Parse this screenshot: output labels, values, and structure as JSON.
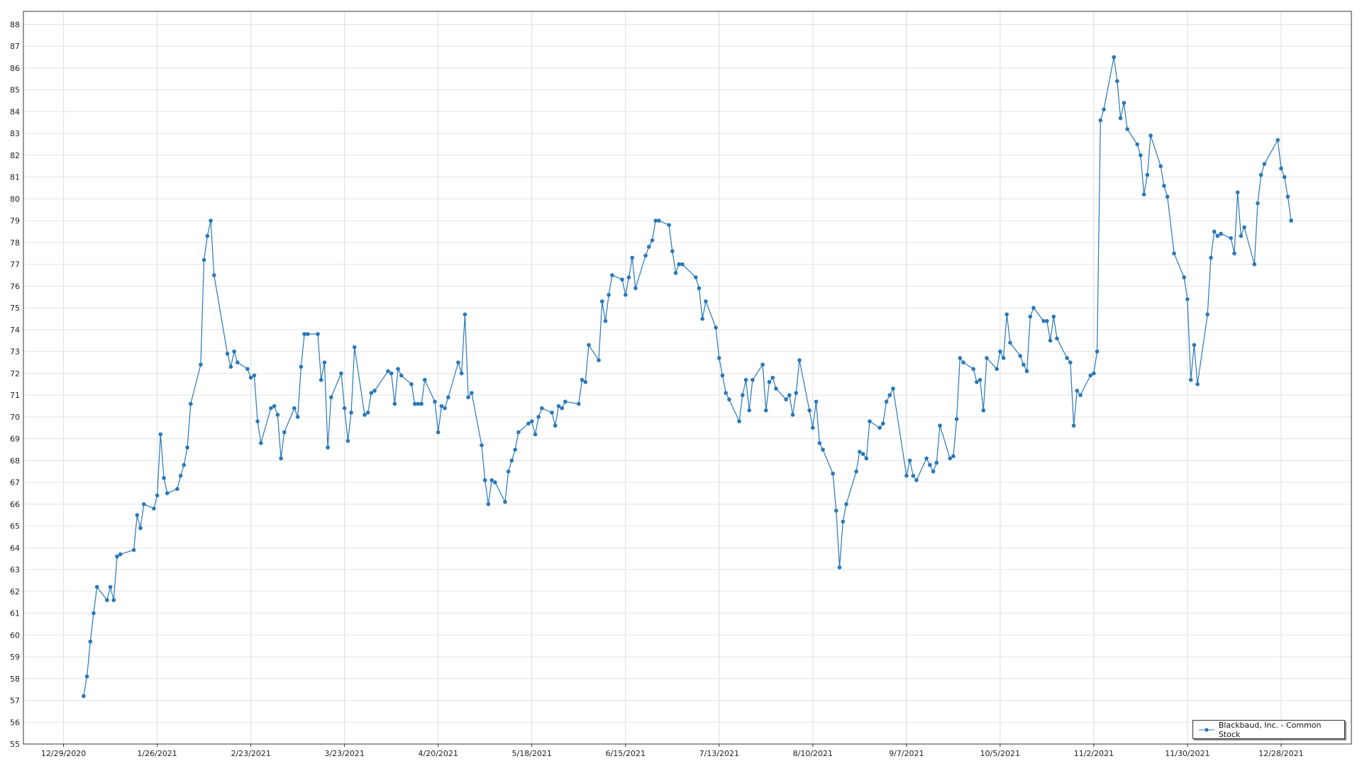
{
  "chart_data": {
    "type": "line",
    "title": "",
    "xlabel": "",
    "ylabel": "",
    "xlim": [
      "2020-12-17",
      "2022-01-18"
    ],
    "ylim": [
      55,
      88.6
    ],
    "grid": true,
    "legend_position": "bottom-right",
    "x_ticks": [
      "12/29/2020",
      "1/26/2021",
      "2/23/2021",
      "3/23/2021",
      "4/20/2021",
      "5/18/2021",
      "6/15/2021",
      "7/13/2021",
      "8/10/2021",
      "9/7/2021",
      "10/5/2021",
      "11/2/2021",
      "11/30/2021",
      "12/28/2021"
    ],
    "y_ticks": [
      55,
      56,
      57,
      58,
      59,
      60,
      61,
      62,
      63,
      64,
      65,
      66,
      67,
      68,
      69,
      70,
      71,
      72,
      73,
      74,
      75,
      76,
      77,
      78,
      79,
      80,
      81,
      82,
      83,
      84,
      85,
      86,
      87,
      88
    ],
    "series": [
      {
        "name": "Blackbaud, Inc. - Common Stock",
        "color": "#2878b8",
        "points": [
          [
            "2021-01-04",
            57.2
          ],
          [
            "2021-01-05",
            58.1
          ],
          [
            "2021-01-06",
            59.7
          ],
          [
            "2021-01-07",
            61.0
          ],
          [
            "2021-01-08",
            62.2
          ],
          [
            "2021-01-11",
            61.6
          ],
          [
            "2021-01-12",
            62.2
          ],
          [
            "2021-01-13",
            61.6
          ],
          [
            "2021-01-14",
            63.6
          ],
          [
            "2021-01-15",
            63.7
          ],
          [
            "2021-01-19",
            63.9
          ],
          [
            "2021-01-20",
            65.5
          ],
          [
            "2021-01-21",
            64.9
          ],
          [
            "2021-01-22",
            66.0
          ],
          [
            "2021-01-25",
            65.8
          ],
          [
            "2021-01-26",
            66.4
          ],
          [
            "2021-01-27",
            69.2
          ],
          [
            "2021-01-28",
            67.2
          ],
          [
            "2021-01-29",
            66.5
          ],
          [
            "2021-02-01",
            66.7
          ],
          [
            "2021-02-02",
            67.3
          ],
          [
            "2021-02-03",
            67.8
          ],
          [
            "2021-02-04",
            68.6
          ],
          [
            "2021-02-05",
            70.6
          ],
          [
            "2021-02-08",
            72.4
          ],
          [
            "2021-02-09",
            77.2
          ],
          [
            "2021-02-10",
            78.3
          ],
          [
            "2021-02-11",
            79.0
          ],
          [
            "2021-02-12",
            76.5
          ],
          [
            "2021-02-16",
            72.9
          ],
          [
            "2021-02-17",
            72.3
          ],
          [
            "2021-02-18",
            73.0
          ],
          [
            "2021-02-19",
            72.5
          ],
          [
            "2021-02-22",
            72.2
          ],
          [
            "2021-02-23",
            71.8
          ],
          [
            "2021-02-24",
            71.9
          ],
          [
            "2021-02-25",
            69.8
          ],
          [
            "2021-02-26",
            68.8
          ],
          [
            "2021-03-01",
            70.4
          ],
          [
            "2021-03-02",
            70.5
          ],
          [
            "2021-03-03",
            70.1
          ],
          [
            "2021-03-04",
            68.1
          ],
          [
            "2021-03-05",
            69.3
          ],
          [
            "2021-03-08",
            70.4
          ],
          [
            "2021-03-09",
            70.0
          ],
          [
            "2021-03-10",
            72.3
          ],
          [
            "2021-03-11",
            73.8
          ],
          [
            "2021-03-12",
            73.8
          ],
          [
            "2021-03-15",
            73.8
          ],
          [
            "2021-03-16",
            71.7
          ],
          [
            "2021-03-17",
            72.5
          ],
          [
            "2021-03-18",
            68.6
          ],
          [
            "2021-03-19",
            70.9
          ],
          [
            "2021-03-22",
            72.0
          ],
          [
            "2021-03-23",
            70.4
          ],
          [
            "2021-03-24",
            68.9
          ],
          [
            "2021-03-25",
            70.2
          ],
          [
            "2021-03-26",
            73.2
          ],
          [
            "2021-03-29",
            70.1
          ],
          [
            "2021-03-30",
            70.2
          ],
          [
            "2021-03-31",
            71.1
          ],
          [
            "2021-04-01",
            71.2
          ],
          [
            "2021-04-05",
            72.1
          ],
          [
            "2021-04-06",
            72.0
          ],
          [
            "2021-04-07",
            70.6
          ],
          [
            "2021-04-08",
            72.2
          ],
          [
            "2021-04-09",
            71.9
          ],
          [
            "2021-04-12",
            71.5
          ],
          [
            "2021-04-13",
            70.6
          ],
          [
            "2021-04-14",
            70.6
          ],
          [
            "2021-04-15",
            70.6
          ],
          [
            "2021-04-16",
            71.7
          ],
          [
            "2021-04-19",
            70.7
          ],
          [
            "2021-04-20",
            69.3
          ],
          [
            "2021-04-21",
            70.5
          ],
          [
            "2021-04-22",
            70.4
          ],
          [
            "2021-04-23",
            70.9
          ],
          [
            "2021-04-26",
            72.5
          ],
          [
            "2021-04-27",
            72.0
          ],
          [
            "2021-04-28",
            74.7
          ],
          [
            "2021-04-29",
            70.9
          ],
          [
            "2021-04-30",
            71.1
          ],
          [
            "2021-05-03",
            68.7
          ],
          [
            "2021-05-04",
            67.1
          ],
          [
            "2021-05-05",
            66.0
          ],
          [
            "2021-05-06",
            67.1
          ],
          [
            "2021-05-07",
            67.0
          ],
          [
            "2021-05-10",
            66.1
          ],
          [
            "2021-05-11",
            67.5
          ],
          [
            "2021-05-12",
            68.0
          ],
          [
            "2021-05-13",
            68.5
          ],
          [
            "2021-05-14",
            69.3
          ],
          [
            "2021-05-17",
            69.7
          ],
          [
            "2021-05-18",
            69.8
          ],
          [
            "2021-05-19",
            69.2
          ],
          [
            "2021-05-20",
            70.0
          ],
          [
            "2021-05-21",
            70.4
          ],
          [
            "2021-05-24",
            70.2
          ],
          [
            "2021-05-25",
            69.6
          ],
          [
            "2021-05-26",
            70.5
          ],
          [
            "2021-05-27",
            70.4
          ],
          [
            "2021-05-28",
            70.7
          ],
          [
            "2021-06-01",
            70.6
          ],
          [
            "2021-06-02",
            71.7
          ],
          [
            "2021-06-03",
            71.6
          ],
          [
            "2021-06-04",
            73.3
          ],
          [
            "2021-06-07",
            72.6
          ],
          [
            "2021-06-08",
            75.3
          ],
          [
            "2021-06-09",
            74.4
          ],
          [
            "2021-06-10",
            75.6
          ],
          [
            "2021-06-11",
            76.5
          ],
          [
            "2021-06-14",
            76.3
          ],
          [
            "2021-06-15",
            75.6
          ],
          [
            "2021-06-16",
            76.4
          ],
          [
            "2021-06-17",
            77.3
          ],
          [
            "2021-06-18",
            75.9
          ],
          [
            "2021-06-21",
            77.4
          ],
          [
            "2021-06-22",
            77.8
          ],
          [
            "2021-06-23",
            78.1
          ],
          [
            "2021-06-24",
            79.0
          ],
          [
            "2021-06-25",
            79.0
          ],
          [
            "2021-06-28",
            78.8
          ],
          [
            "2021-06-29",
            77.6
          ],
          [
            "2021-06-30",
            76.6
          ],
          [
            "2021-07-01",
            77.0
          ],
          [
            "2021-07-02",
            77.0
          ],
          [
            "2021-07-06",
            76.4
          ],
          [
            "2021-07-07",
            75.9
          ],
          [
            "2021-07-08",
            74.5
          ],
          [
            "2021-07-09",
            75.3
          ],
          [
            "2021-07-12",
            74.1
          ],
          [
            "2021-07-13",
            72.7
          ],
          [
            "2021-07-14",
            71.9
          ],
          [
            "2021-07-15",
            71.1
          ],
          [
            "2021-07-16",
            70.8
          ],
          [
            "2021-07-19",
            69.8
          ],
          [
            "2021-07-20",
            71.0
          ],
          [
            "2021-07-21",
            71.7
          ],
          [
            "2021-07-22",
            70.3
          ],
          [
            "2021-07-23",
            71.7
          ],
          [
            "2021-07-26",
            72.4
          ],
          [
            "2021-07-27",
            70.3
          ],
          [
            "2021-07-28",
            71.6
          ],
          [
            "2021-07-29",
            71.8
          ],
          [
            "2021-07-30",
            71.3
          ],
          [
            "2021-08-02",
            70.8
          ],
          [
            "2021-08-03",
            71.0
          ],
          [
            "2021-08-04",
            70.1
          ],
          [
            "2021-08-05",
            71.1
          ],
          [
            "2021-08-06",
            72.6
          ],
          [
            "2021-08-09",
            70.3
          ],
          [
            "2021-08-10",
            69.5
          ],
          [
            "2021-08-11",
            70.7
          ],
          [
            "2021-08-12",
            68.8
          ],
          [
            "2021-08-13",
            68.5
          ],
          [
            "2021-08-16",
            67.4
          ],
          [
            "2021-08-17",
            65.7
          ],
          [
            "2021-08-18",
            63.1
          ],
          [
            "2021-08-19",
            65.2
          ],
          [
            "2021-08-20",
            66.0
          ],
          [
            "2021-08-23",
            67.5
          ],
          [
            "2021-08-24",
            68.4
          ],
          [
            "2021-08-25",
            68.3
          ],
          [
            "2021-08-26",
            68.1
          ],
          [
            "2021-08-27",
            69.8
          ],
          [
            "2021-08-30",
            69.5
          ],
          [
            "2021-08-31",
            69.7
          ],
          [
            "2021-09-01",
            70.7
          ],
          [
            "2021-09-02",
            71.0
          ],
          [
            "2021-09-03",
            71.3
          ],
          [
            "2021-09-07",
            67.3
          ],
          [
            "2021-09-08",
            68.0
          ],
          [
            "2021-09-09",
            67.3
          ],
          [
            "2021-09-10",
            67.1
          ],
          [
            "2021-09-13",
            68.1
          ],
          [
            "2021-09-14",
            67.8
          ],
          [
            "2021-09-15",
            67.5
          ],
          [
            "2021-09-16",
            67.9
          ],
          [
            "2021-09-17",
            69.6
          ],
          [
            "2021-09-20",
            68.1
          ],
          [
            "2021-09-21",
            68.2
          ],
          [
            "2021-09-22",
            69.9
          ],
          [
            "2021-09-23",
            72.7
          ],
          [
            "2021-09-24",
            72.5
          ],
          [
            "2021-09-27",
            72.2
          ],
          [
            "2021-09-28",
            71.6
          ],
          [
            "2021-09-29",
            71.7
          ],
          [
            "2021-09-30",
            70.3
          ],
          [
            "2021-10-01",
            72.7
          ],
          [
            "2021-10-04",
            72.2
          ],
          [
            "2021-10-05",
            73.0
          ],
          [
            "2021-10-06",
            72.7
          ],
          [
            "2021-10-07",
            74.7
          ],
          [
            "2021-10-08",
            73.4
          ],
          [
            "2021-10-11",
            72.8
          ],
          [
            "2021-10-12",
            72.4
          ],
          [
            "2021-10-13",
            72.1
          ],
          [
            "2021-10-14",
            74.6
          ],
          [
            "2021-10-15",
            75.0
          ],
          [
            "2021-10-18",
            74.4
          ],
          [
            "2021-10-19",
            74.4
          ],
          [
            "2021-10-20",
            73.5
          ],
          [
            "2021-10-21",
            74.6
          ],
          [
            "2021-10-22",
            73.6
          ],
          [
            "2021-10-25",
            72.7
          ],
          [
            "2021-10-26",
            72.5
          ],
          [
            "2021-10-27",
            69.6
          ],
          [
            "2021-10-28",
            71.2
          ],
          [
            "2021-10-29",
            71.0
          ],
          [
            "2021-11-01",
            71.9
          ],
          [
            "2021-11-02",
            72.0
          ],
          [
            "2021-11-03",
            73.0
          ],
          [
            "2021-11-04",
            83.6
          ],
          [
            "2021-11-05",
            84.1
          ],
          [
            "2021-11-08",
            86.5
          ],
          [
            "2021-11-09",
            85.4
          ],
          [
            "2021-11-10",
            83.7
          ],
          [
            "2021-11-11",
            84.4
          ],
          [
            "2021-11-12",
            83.2
          ],
          [
            "2021-11-15",
            82.5
          ],
          [
            "2021-11-16",
            82.0
          ],
          [
            "2021-11-17",
            80.2
          ],
          [
            "2021-11-18",
            81.1
          ],
          [
            "2021-11-19",
            82.9
          ],
          [
            "2021-11-22",
            81.5
          ],
          [
            "2021-11-23",
            80.6
          ],
          [
            "2021-11-24",
            80.1
          ],
          [
            "2021-11-26",
            77.5
          ],
          [
            "2021-11-29",
            76.4
          ],
          [
            "2021-11-30",
            75.4
          ],
          [
            "2021-12-01",
            71.7
          ],
          [
            "2021-12-02",
            73.3
          ],
          [
            "2021-12-03",
            71.5
          ],
          [
            "2021-12-06",
            74.7
          ],
          [
            "2021-12-07",
            77.3
          ],
          [
            "2021-12-08",
            78.5
          ],
          [
            "2021-12-09",
            78.3
          ],
          [
            "2021-12-10",
            78.4
          ],
          [
            "2021-12-13",
            78.2
          ],
          [
            "2021-12-14",
            77.5
          ],
          [
            "2021-12-15",
            80.3
          ],
          [
            "2021-12-16",
            78.3
          ],
          [
            "2021-12-17",
            78.7
          ],
          [
            "2021-12-20",
            77.0
          ],
          [
            "2021-12-21",
            79.8
          ],
          [
            "2021-12-22",
            81.1
          ],
          [
            "2021-12-23",
            81.6
          ],
          [
            "2021-12-27",
            82.7
          ],
          [
            "2021-12-28",
            81.4
          ],
          [
            "2021-12-29",
            81.0
          ],
          [
            "2021-12-30",
            80.1
          ],
          [
            "2021-12-31",
            79.0
          ]
        ]
      }
    ]
  }
}
